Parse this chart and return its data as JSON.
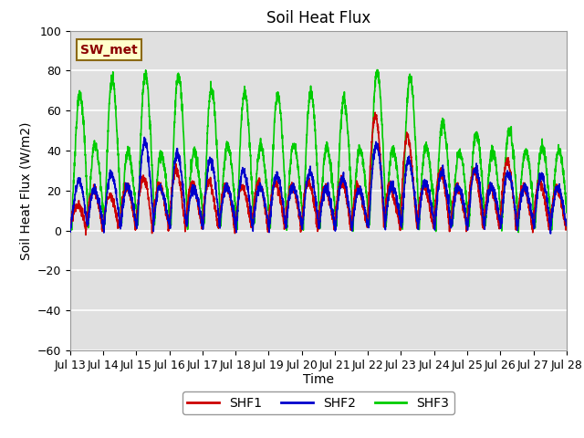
{
  "title": "Soil Heat Flux",
  "ylabel": "Soil Heat Flux (W/m2)",
  "xlabel": "Time",
  "ylim": [
    -60,
    100
  ],
  "colors": {
    "SHF1": "#cc0000",
    "SHF2": "#0000cc",
    "SHF3": "#00cc00"
  },
  "legend_label": "SW_met",
  "bg_color": "#e0e0e0",
  "grid_color": "white",
  "title_fontsize": 12,
  "axis_fontsize": 10,
  "tick_fontsize": 9,
  "legend_fontsize": 10,
  "x_ticks": [
    "Jul 13",
    "Jul 14",
    "Jul 15",
    "Jul 16",
    "Jul 17",
    "Jul 18",
    "Jul 19",
    "Jul 20",
    "Jul 21",
    "Jul 22",
    "Jul 23",
    "Jul 24",
    "Jul 25",
    "Jul 26",
    "Jul 27",
    "Jul 28"
  ],
  "yticks": [
    -60,
    -40,
    -20,
    0,
    20,
    40,
    60,
    80,
    100
  ]
}
